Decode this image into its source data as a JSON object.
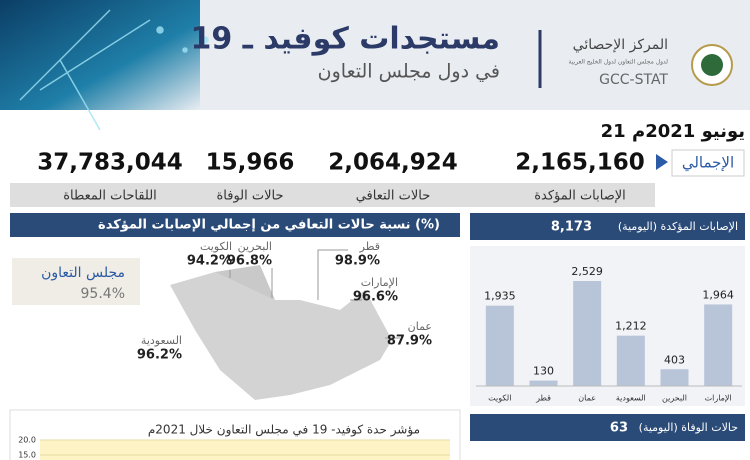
{
  "header": {
    "title": "مستجدات كوفيد ـ 19",
    "subtitle": "في دول مجلس التعاون",
    "org_name": "المركز الإحصائي",
    "org_subname": "لدول مجلس التعاون لدول الخليج العربية",
    "org_code": "GCC-STAT"
  },
  "date": "21 يونيو 2021م",
  "totals": {
    "label": "الإجمالي",
    "items": [
      {
        "value": "2,165,160",
        "label": "الإصابات المؤكدة"
      },
      {
        "value": "2,064,924",
        "label": "حالات التعافي"
      },
      {
        "value": "15,966",
        "label": "حالات الوفاة"
      },
      {
        "value": "37,783,044",
        "label": "اللقاحات المعطاة"
      }
    ]
  },
  "recovery": {
    "title": "نسبة حالات التعافي من إجمالي الإصابات المؤكدة (%)",
    "gcc": {
      "name": "مجلس التعاون",
      "value": "95.4%"
    },
    "countries": [
      {
        "name": "الكويت",
        "value": "94.2%"
      },
      {
        "name": "البحرين",
        "value": "96.8%"
      },
      {
        "name": "قطر",
        "value": "98.9%"
      },
      {
        "name": "الإمارات",
        "value": "96.6%"
      },
      {
        "name": "عمان",
        "value": "87.9%"
      },
      {
        "name": "السعودية",
        "value": "96.2%"
      }
    ]
  },
  "chart_data": {
    "type": "bar",
    "title": "الإصابات المؤكدة (اليومية)",
    "total": "8,173",
    "categories": [
      "الإمارات",
      "البحرين",
      "السعودية",
      "عمان",
      "قطر",
      "الكويت"
    ],
    "values": [
      1964,
      403,
      1212,
      2529,
      130,
      1935
    ],
    "value_labels": [
      "1,964",
      "403",
      "1,212",
      "2,529",
      "130",
      "1,935"
    ],
    "color": "#b8c4d8"
  },
  "severity": {
    "title": "مؤشر حدة كوفيد- 19 في مجلس التعاون خلال 2021م",
    "yticks": [
      {
        "value": 20,
        "label": "20.0"
      },
      {
        "value": 15,
        "label": "15.0"
      }
    ]
  },
  "deaths_daily": {
    "title": "حالات الوفاة (اليومية)",
    "total": "63"
  }
}
